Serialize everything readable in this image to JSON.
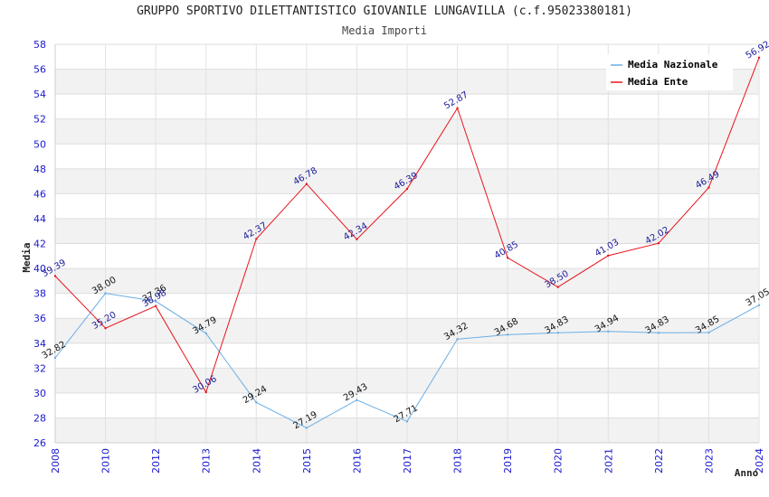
{
  "chart_data": {
    "type": "line",
    "title": "GRUPPO SPORTIVO DILETTANTISTICO GIOVANILE LUNGAVILLA (c.f.95023380181)",
    "subtitle": "Media Importi",
    "xlabel": "Anno",
    "ylabel": "Media",
    "categories": [
      "2008",
      "2010",
      "2012",
      "2013",
      "2014",
      "2015",
      "2016",
      "2017",
      "2018",
      "2019",
      "2020",
      "2021",
      "2022",
      "2023",
      "2024"
    ],
    "ylim": [
      26,
      58
    ],
    "yticks": [
      "26",
      "28",
      "30",
      "32",
      "34",
      "36",
      "38",
      "40",
      "42",
      "44",
      "46",
      "48",
      "50",
      "52",
      "54",
      "56",
      "58"
    ],
    "legend_position": "top-right",
    "series": [
      {
        "name": "Media Nazionale",
        "color": "#6aaee6",
        "label_color": "#111111",
        "values": [
          32.82,
          38.0,
          37.36,
          34.79,
          29.24,
          27.19,
          29.43,
          27.71,
          34.32,
          34.68,
          34.83,
          34.94,
          34.83,
          34.85,
          37.05
        ],
        "labels": [
          "32.82",
          "38.00",
          "37.36",
          "34.79",
          "29.24",
          "27.19",
          "29.43",
          "27.71",
          "34.32",
          "34.68",
          "34.83",
          "34.94",
          "34.83",
          "34.85",
          "37.05"
        ]
      },
      {
        "name": "Media Ente",
        "color": "#e8141c",
        "label_color": "#1a1a99",
        "values": [
          39.39,
          35.2,
          36.98,
          30.06,
          42.37,
          46.78,
          42.34,
          46.39,
          52.87,
          40.85,
          38.5,
          41.03,
          42.02,
          46.49,
          56.92
        ],
        "labels": [
          "39.39",
          "35.20",
          "36.98",
          "30.06",
          "42.37",
          "46.78",
          "42.34",
          "46.39",
          "52.87",
          "40.85",
          "38.50",
          "41.03",
          "42.02",
          "46.49",
          "56.92"
        ]
      }
    ]
  }
}
